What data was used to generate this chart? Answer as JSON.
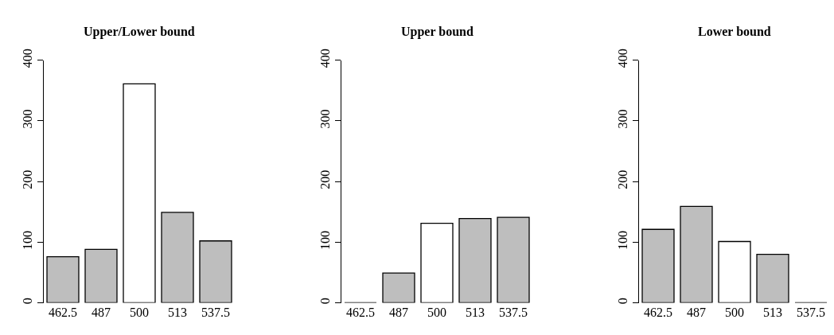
{
  "chart_data": [
    {
      "type": "bar",
      "title": "Upper/Lower bound",
      "categories": [
        "462.5",
        "487",
        "500",
        "513",
        "537.5"
      ],
      "values": [
        76,
        88,
        361,
        149,
        102
      ],
      "colors": [
        "#bebebe",
        "#bebebe",
        "#ffffff",
        "#bebebe",
        "#bebebe"
      ],
      "ylim": [
        0,
        400
      ],
      "yticks": [
        0,
        100,
        200,
        300,
        400
      ]
    },
    {
      "type": "bar",
      "title": "Upper bound",
      "categories": [
        "462.5",
        "487",
        "500",
        "513",
        "537.5"
      ],
      "values": [
        0,
        49,
        131,
        139,
        141
      ],
      "colors": [
        "#000000",
        "#bebebe",
        "#ffffff",
        "#bebebe",
        "#bebebe"
      ],
      "ylim": [
        0,
        400
      ],
      "yticks": [
        0,
        100,
        200,
        300,
        400
      ]
    },
    {
      "type": "bar",
      "title": "Lower bound",
      "categories": [
        "462.5",
        "487",
        "500",
        "513",
        "537.5"
      ],
      "values": [
        121,
        159,
        101,
        80,
        0
      ],
      "colors": [
        "#bebebe",
        "#bebebe",
        "#ffffff",
        "#bebebe",
        "#000000"
      ],
      "ylim": [
        0,
        400
      ],
      "yticks": [
        0,
        100,
        200,
        300,
        400
      ]
    }
  ]
}
